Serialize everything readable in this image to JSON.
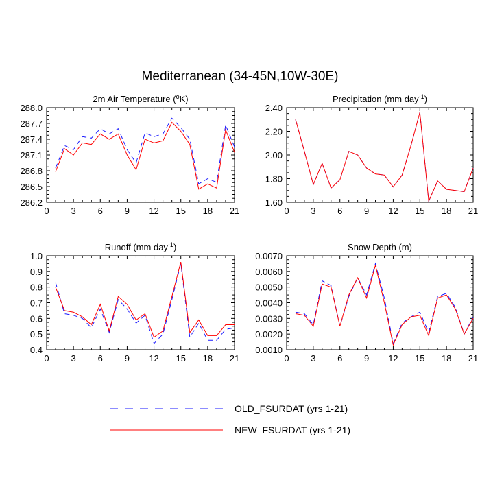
{
  "title": "Mediterranean (34-45N,10W-30E)",
  "colors": {
    "old": "#1a1aff",
    "new": "#ff0000"
  },
  "legend": [
    {
      "key": "old",
      "label": "OLD_FSURDAT (yrs 1-21)",
      "style": "dashed"
    },
    {
      "key": "new",
      "label": "NEW_FSURDAT (yrs 1-21)",
      "style": "solid"
    }
  ],
  "chart_data": [
    {
      "type": "line",
      "title": "2m Air Temperature",
      "title_sup": "o",
      "title_prefix": "2m Air Temperature (",
      "title_suffix": "K)",
      "x": [
        1,
        2,
        3,
        4,
        5,
        6,
        7,
        8,
        9,
        10,
        11,
        12,
        13,
        14,
        15,
        16,
        17,
        18,
        19,
        20,
        21
      ],
      "xlim": [
        0,
        21
      ],
      "xticks": [
        0,
        3,
        6,
        9,
        12,
        15,
        18,
        21
      ],
      "ylim": [
        286.2,
        288.0
      ],
      "yticks": [
        "286.2",
        "286.5",
        "286.8",
        "287.1",
        "287.4",
        "287.7",
        "288.0"
      ],
      "series": [
        {
          "key": "old",
          "values": [
            286.85,
            287.28,
            287.2,
            287.45,
            287.42,
            287.6,
            287.5,
            287.6,
            287.2,
            286.95,
            287.52,
            287.45,
            287.5,
            287.8,
            287.62,
            287.4,
            286.55,
            286.65,
            286.58,
            287.67,
            287.25
          ]
        },
        {
          "key": "new",
          "values": [
            286.78,
            287.22,
            287.1,
            287.33,
            287.3,
            287.5,
            287.4,
            287.5,
            287.1,
            286.82,
            287.4,
            287.33,
            287.37,
            287.72,
            287.55,
            287.3,
            286.45,
            286.55,
            286.47,
            287.58,
            287.15
          ]
        }
      ]
    },
    {
      "type": "line",
      "title_prefix": "Precipitation (mm day",
      "title_sup": "-1",
      "title_suffix": ")",
      "x": [
        1,
        2,
        3,
        4,
        5,
        6,
        7,
        8,
        9,
        10,
        11,
        12,
        13,
        14,
        15,
        16,
        17,
        18,
        19,
        20,
        21
      ],
      "xlim": [
        0,
        21
      ],
      "xticks": [
        0,
        3,
        6,
        9,
        12,
        15,
        18,
        21
      ],
      "ylim": [
        1.6,
        2.4
      ],
      "yticks": [
        "1.60",
        "1.80",
        "2.00",
        "2.20",
        "2.40"
      ],
      "series": [
        {
          "key": "old",
          "values": [
            2.3,
            2.03,
            1.75,
            1.93,
            1.72,
            1.79,
            2.03,
            2.0,
            1.89,
            1.84,
            1.83,
            1.73,
            1.83,
            2.08,
            2.36,
            1.61,
            1.78,
            1.71,
            1.7,
            1.69,
            1.89
          ]
        },
        {
          "key": "new",
          "values": [
            2.3,
            2.03,
            1.75,
            1.93,
            1.72,
            1.79,
            2.03,
            2.0,
            1.89,
            1.84,
            1.83,
            1.73,
            1.83,
            2.08,
            2.36,
            1.61,
            1.78,
            1.71,
            1.7,
            1.69,
            1.89
          ]
        }
      ]
    },
    {
      "type": "line",
      "title_prefix": "Runoff (mm day",
      "title_sup": "-1",
      "title_suffix": ")",
      "x": [
        1,
        2,
        3,
        4,
        5,
        6,
        7,
        8,
        9,
        10,
        11,
        12,
        13,
        14,
        15,
        16,
        17,
        18,
        19,
        20,
        21
      ],
      "xlim": [
        0,
        21
      ],
      "xticks": [
        0,
        3,
        6,
        9,
        12,
        15,
        18,
        21
      ],
      "ylim": [
        0.4,
        1.0
      ],
      "yticks": [
        "0.4",
        "0.5",
        "0.6",
        "0.7",
        "0.8",
        "0.9",
        "1.0"
      ],
      "series": [
        {
          "key": "old",
          "values": [
            0.83,
            0.63,
            0.62,
            0.6,
            0.54,
            0.66,
            0.51,
            0.72,
            0.66,
            0.57,
            0.62,
            0.44,
            0.5,
            0.72,
            0.95,
            0.48,
            0.57,
            0.46,
            0.46,
            0.53,
            0.54
          ]
        },
        {
          "key": "new",
          "values": [
            0.8,
            0.65,
            0.64,
            0.61,
            0.56,
            0.69,
            0.52,
            0.74,
            0.69,
            0.59,
            0.63,
            0.48,
            0.52,
            0.74,
            0.96,
            0.51,
            0.59,
            0.49,
            0.49,
            0.56,
            0.56
          ]
        }
      ]
    },
    {
      "type": "line",
      "title_prefix": "Snow Depth (m)",
      "title_sup": "",
      "title_suffix": "",
      "x": [
        1,
        2,
        3,
        4,
        5,
        6,
        7,
        8,
        9,
        10,
        11,
        12,
        13,
        14,
        15,
        16,
        17,
        18,
        19,
        20,
        21
      ],
      "xlim": [
        0,
        21
      ],
      "xticks": [
        0,
        3,
        6,
        9,
        12,
        15,
        18,
        21
      ],
      "ylim": [
        0.001,
        0.007
      ],
      "yticks": [
        "0.0010",
        "0.0020",
        "0.0030",
        "0.0040",
        "0.0050",
        "0.0060",
        "0.0070"
      ],
      "series": [
        {
          "key": "old",
          "values": [
            0.0034,
            0.0033,
            0.0026,
            0.0054,
            0.0051,
            0.0025,
            0.0044,
            0.0056,
            0.0045,
            0.0065,
            0.0043,
            0.0014,
            0.0027,
            0.0031,
            0.0034,
            0.0021,
            0.0044,
            0.0046,
            0.0037,
            0.002,
            0.0031
          ]
        },
        {
          "key": "new",
          "values": [
            0.0033,
            0.0032,
            0.0025,
            0.0052,
            0.005,
            0.0025,
            0.0045,
            0.0056,
            0.0043,
            0.0064,
            0.004,
            0.0013,
            0.0026,
            0.0031,
            0.0032,
            0.0019,
            0.0043,
            0.0045,
            0.0036,
            0.002,
            0.003
          ]
        }
      ]
    }
  ]
}
